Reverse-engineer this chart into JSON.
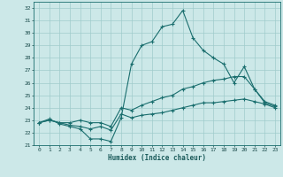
{
  "xlabel": "Humidex (Indice chaleur)",
  "background_color": "#cce8e8",
  "grid_color": "#a0cccc",
  "line_color": "#1a6e6e",
  "xlim": [
    -0.5,
    23.5
  ],
  "ylim": [
    21,
    32.5
  ],
  "yticks": [
    21,
    22,
    23,
    24,
    25,
    26,
    27,
    28,
    29,
    30,
    31,
    32
  ],
  "xticks": [
    0,
    1,
    2,
    3,
    4,
    5,
    6,
    7,
    8,
    9,
    10,
    11,
    12,
    13,
    14,
    15,
    16,
    17,
    18,
    19,
    20,
    21,
    22,
    23
  ],
  "curve1_x": [
    0,
    1,
    2,
    3,
    4,
    5,
    6,
    7,
    8,
    9,
    10,
    11,
    12,
    13,
    14,
    15,
    16,
    17,
    18,
    19,
    20,
    21,
    22,
    23
  ],
  "curve1_y": [
    22.8,
    23.1,
    22.7,
    22.5,
    22.3,
    21.5,
    21.5,
    21.3,
    23.2,
    27.5,
    29.0,
    29.3,
    30.5,
    30.7,
    31.8,
    29.6,
    28.6,
    28.0,
    27.5,
    26.0,
    27.3,
    25.5,
    24.4,
    24.1
  ],
  "curve2_x": [
    0,
    1,
    2,
    3,
    4,
    5,
    6,
    7,
    8,
    9,
    10,
    11,
    12,
    13,
    14,
    15,
    16,
    17,
    18,
    19,
    20,
    21,
    22,
    23
  ],
  "curve2_y": [
    22.8,
    23.0,
    22.8,
    22.8,
    23.0,
    22.8,
    22.8,
    22.5,
    24.0,
    23.8,
    24.2,
    24.5,
    24.8,
    25.0,
    25.5,
    25.7,
    26.0,
    26.2,
    26.3,
    26.5,
    26.5,
    25.5,
    24.5,
    24.2
  ],
  "curve3_x": [
    0,
    1,
    2,
    3,
    4,
    5,
    6,
    7,
    8,
    9,
    10,
    11,
    12,
    13,
    14,
    15,
    16,
    17,
    18,
    19,
    20,
    21,
    22,
    23
  ],
  "curve3_y": [
    22.8,
    23.0,
    22.8,
    22.6,
    22.5,
    22.3,
    22.5,
    22.2,
    23.5,
    23.2,
    23.4,
    23.5,
    23.6,
    23.8,
    24.0,
    24.2,
    24.4,
    24.4,
    24.5,
    24.6,
    24.7,
    24.5,
    24.3,
    24.0
  ],
  "marker": "+",
  "markersize": 3,
  "linewidth": 0.8,
  "tick_fontsize": 4.5,
  "xlabel_fontsize": 5.5
}
